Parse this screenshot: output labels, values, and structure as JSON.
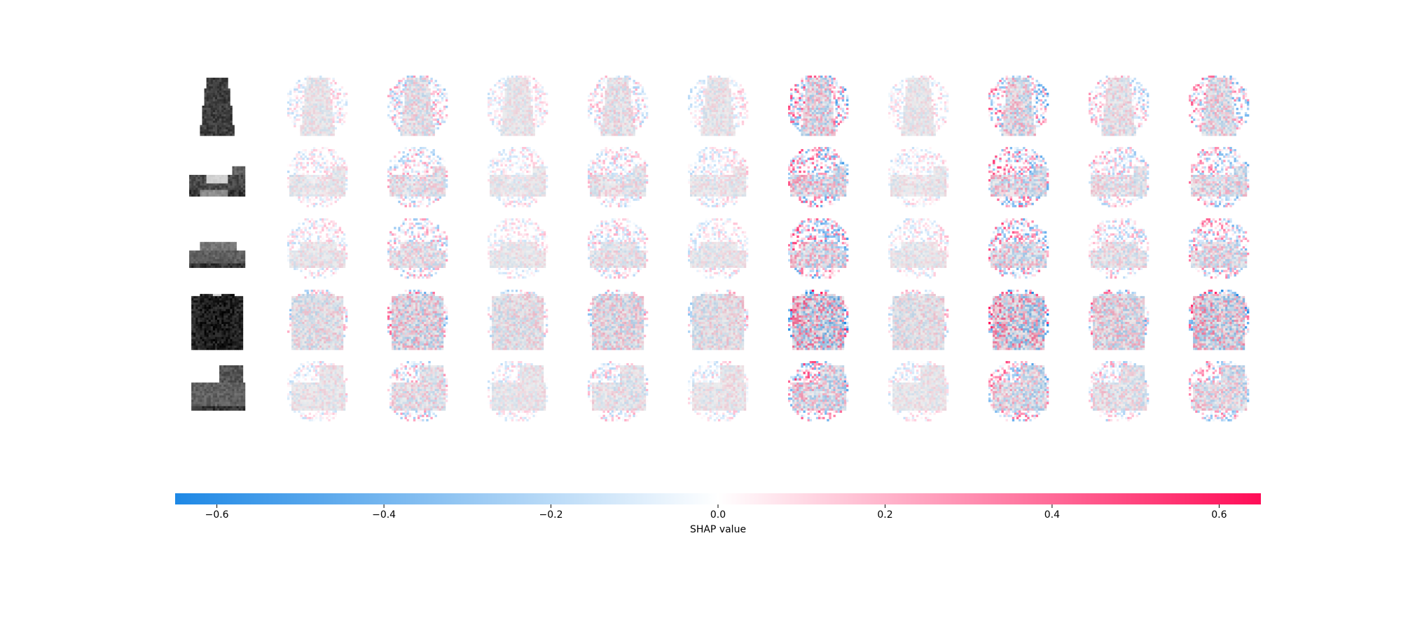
{
  "chart_data": {
    "type": "heatmap",
    "rows": [
      "dress",
      "sandal",
      "sneaker",
      "pullover",
      "ankle-boot"
    ],
    "columns": 10,
    "colorbar": {
      "label": "SHAP value",
      "range": [
        -0.65,
        0.65
      ],
      "ticks": [
        -0.6,
        -0.4,
        -0.2,
        0.0,
        0.2,
        0.4,
        0.6
      ],
      "tick_labels": [
        "−0.6",
        "−0.4",
        "−0.2",
        "0.0",
        "0.2",
        "0.4",
        "0.6"
      ],
      "low_color": "#1E88E5",
      "mid_color": "#FFFFFF",
      "high_color": "#FF0D57"
    },
    "column_strength": [
      0.6,
      1.0,
      0.55,
      0.8,
      0.6,
      1.6,
      0.55,
      1.5,
      0.9,
      1.3
    ],
    "column_bias": [
      -0.1,
      0.0,
      -0.1,
      0.05,
      -0.15,
      0.3,
      -0.1,
      0.35,
      0.2,
      0.25
    ]
  }
}
